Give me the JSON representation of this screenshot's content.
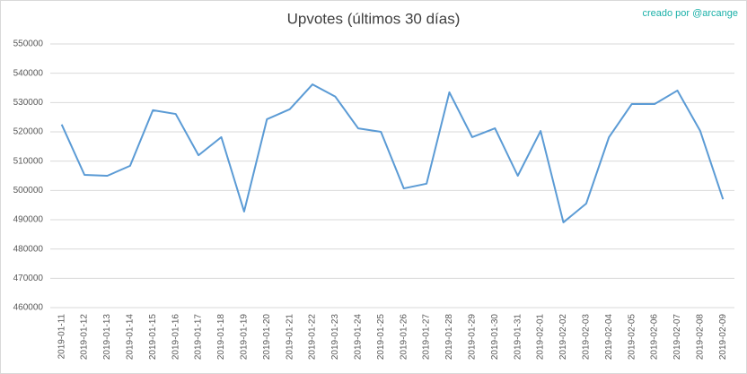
{
  "chart_data": {
    "type": "line",
    "title": "Upvotes (últimos 30 días)",
    "annotation": "creado por @arcange",
    "categories": [
      "2019-01-11",
      "2019-01-12",
      "2019-01-13",
      "2019-01-14",
      "2019-01-15",
      "2019-01-16",
      "2019-01-17",
      "2019-01-18",
      "2019-01-19",
      "2019-01-20",
      "2019-01-21",
      "2019-01-22",
      "2019-01-23",
      "2019-01-24",
      "2019-01-25",
      "2019-01-26",
      "2019-01-27",
      "2019-01-28",
      "2019-01-29",
      "2019-01-30",
      "2019-01-31",
      "2019-02-01",
      "2019-02-02",
      "2019-02-03",
      "2019-02-04",
      "2019-02-05",
      "2019-02-06",
      "2019-02-07",
      "2019-02-08",
      "2019-02-09"
    ],
    "values": [
      522500,
      505300,
      505000,
      508400,
      527400,
      526100,
      512000,
      518200,
      492800,
      524300,
      527700,
      536200,
      532000,
      521200,
      520000,
      500700,
      502300,
      533500,
      518200,
      521200,
      505000,
      520300,
      489100,
      495500,
      518200,
      529500,
      529500,
      534100,
      520300,
      497000
    ],
    "color": "#5b9bd5",
    "ylim": [
      460000,
      550000
    ],
    "yticks": [
      460000,
      470000,
      480000,
      490000,
      500000,
      510000,
      520000,
      530000,
      540000,
      550000
    ],
    "grid": true
  }
}
